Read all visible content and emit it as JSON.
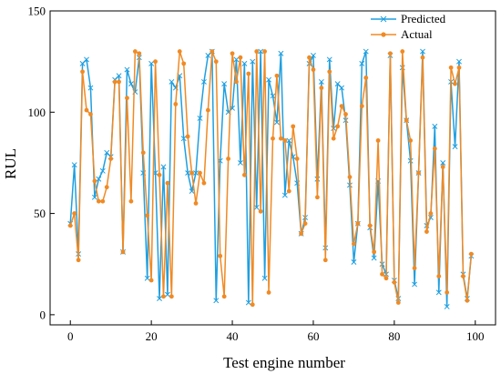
{
  "chart_data": {
    "type": "line",
    "title": "",
    "xlabel": "Test engine number",
    "ylabel": "RUL",
    "xlim": [
      -5,
      105
    ],
    "ylim": [
      -5,
      150
    ],
    "xticks": [
      0,
      20,
      40,
      60,
      80,
      100
    ],
    "yticks": [
      0,
      50,
      100,
      150
    ],
    "grid": false,
    "legend_position": "top-right",
    "x": [
      0,
      1,
      2,
      3,
      4,
      5,
      6,
      7,
      8,
      9,
      10,
      11,
      12,
      13,
      14,
      15,
      16,
      17,
      18,
      19,
      20,
      21,
      22,
      23,
      24,
      25,
      26,
      27,
      28,
      29,
      30,
      31,
      32,
      33,
      34,
      35,
      36,
      37,
      38,
      39,
      40,
      41,
      42,
      43,
      44,
      45,
      46,
      47,
      48,
      49,
      50,
      51,
      52,
      53,
      54,
      55,
      56,
      57,
      58,
      59,
      60,
      61,
      62,
      63,
      64,
      65,
      66,
      67,
      68,
      69,
      70,
      71,
      72,
      73,
      74,
      75,
      76,
      77,
      78,
      79,
      80,
      81,
      82,
      83,
      84,
      85,
      86,
      87,
      88,
      89,
      90,
      91,
      92,
      93,
      94,
      95,
      96,
      97,
      98,
      99
    ],
    "series": [
      {
        "name": "Predicted",
        "color": "#1f9fe0",
        "marker": "x",
        "values": [
          45,
          74,
          30,
          124,
          126,
          112,
          58,
          67,
          71,
          80,
          78,
          116,
          118,
          31,
          121,
          114,
          110,
          127,
          70,
          18,
          124,
          70,
          8,
          73,
          10,
          115,
          112,
          118,
          87,
          70,
          61,
          70,
          97,
          115,
          128,
          130,
          7,
          76,
          114,
          100,
          102,
          126,
          75,
          124,
          6,
          125,
          53,
          130,
          18,
          116,
          108,
          95,
          129,
          59,
          86,
          78,
          65,
          40,
          48,
          124,
          128,
          67,
          115,
          33,
          126,
          92,
          114,
          112,
          96,
          64,
          26,
          45,
          124,
          130,
          43,
          28,
          66,
          25,
          20,
          128,
          17,
          8,
          122,
          96,
          76,
          15,
          70,
          130,
          44,
          48,
          93,
          11,
          75,
          4,
          115,
          83,
          125,
          20,
          8,
          29
        ]
      },
      {
        "name": "Actual",
        "color": "#f08a24",
        "marker": "circle",
        "values": [
          44,
          50,
          27,
          120,
          101,
          99,
          66,
          56,
          56,
          63,
          77,
          115,
          115,
          31,
          107,
          56,
          130,
          129,
          80,
          49,
          17,
          125,
          69,
          9,
          65,
          9,
          104,
          130,
          124,
          88,
          70,
          55,
          70,
          65,
          101,
          130,
          125,
          29,
          9,
          77,
          129,
          115,
          127,
          69,
          119,
          5,
          130,
          51,
          130,
          11,
          87,
          118,
          87,
          86,
          61,
          93,
          77,
          40,
          45,
          127,
          121,
          58,
          112,
          27,
          120,
          87,
          93,
          103,
          99,
          68,
          35,
          45,
          103,
          117,
          44,
          31,
          86,
          20,
          18,
          129,
          16,
          6,
          130,
          96,
          86,
          23,
          70,
          127,
          41,
          50,
          82,
          19,
          73,
          11,
          122,
          114,
          122,
          19,
          7,
          30
        ]
      }
    ]
  }
}
